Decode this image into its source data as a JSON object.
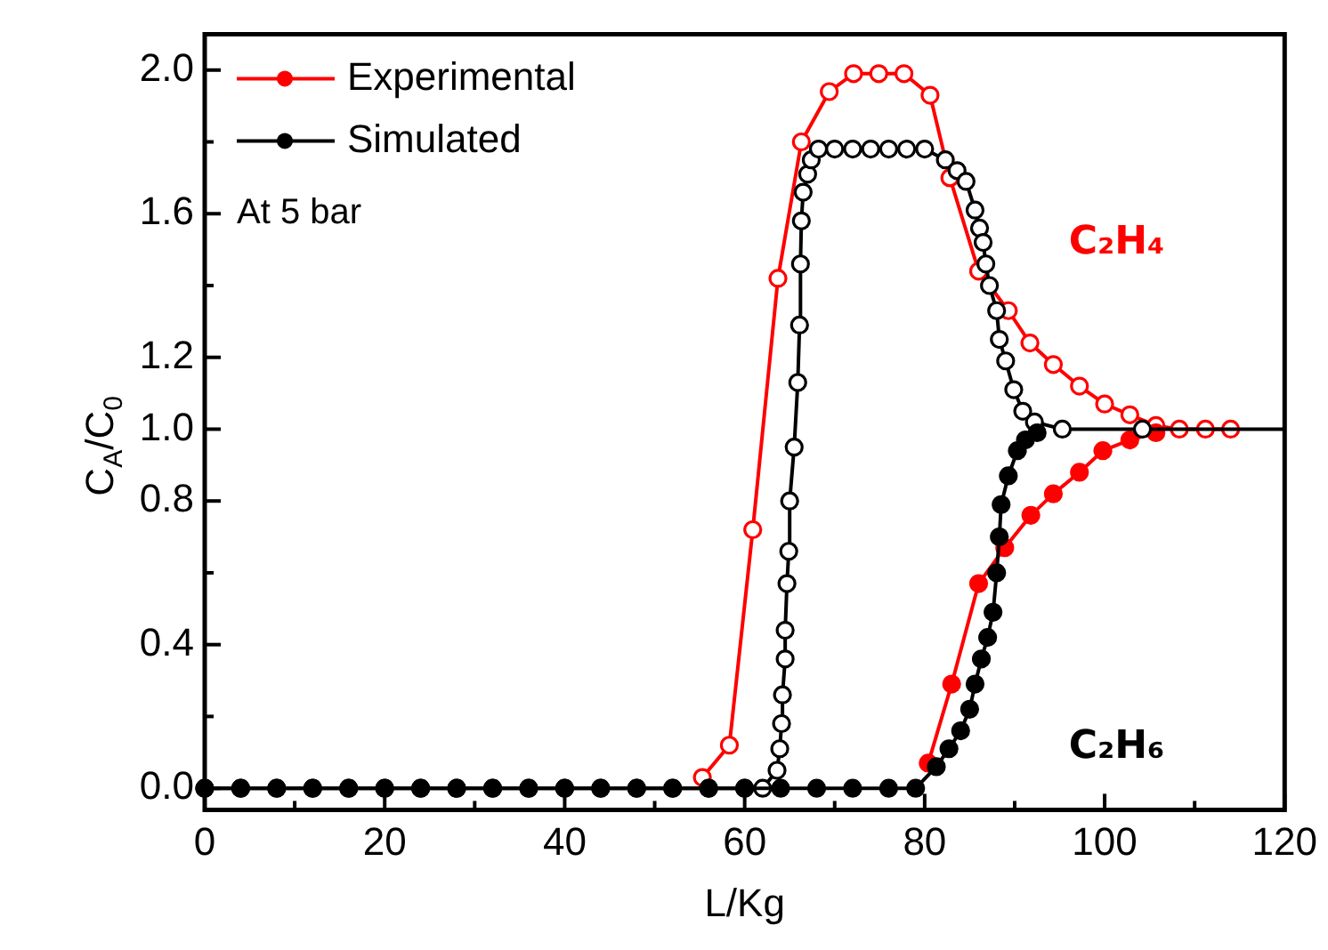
{
  "chart_data": {
    "type": "line",
    "xlabel": "L/Kg",
    "ylabel": "C$_{A}$/C$_{0}$",
    "xlim": [
      0,
      120
    ],
    "ylim": [
      -0.06,
      2.1
    ],
    "xticks": [
      0,
      {
        "value": 10,
        "label": null
      },
      20,
      {
        "value": 30,
        "label": null
      },
      40,
      {
        "value": 50,
        "label": null
      },
      60,
      {
        "value": 70,
        "label": null
      },
      80,
      {
        "value": 90,
        "label": null
      },
      100,
      {
        "value": 110,
        "label": null
      },
      120
    ],
    "yticks": [
      {
        "value": 0,
        "label": "0.0"
      },
      {
        "value": 0.2,
        "label": null
      },
      0.4,
      {
        "value": 0.6,
        "label": null
      },
      0.8,
      {
        "value": 1,
        "label": "1.0"
      },
      1.2,
      {
        "value": 1.4,
        "label": null
      },
      1.6,
      {
        "value": 1.8,
        "label": null
      },
      {
        "value": 2,
        "label": "2.0"
      }
    ],
    "marker": "circle",
    "line_style": "solid",
    "legend": "top left",
    "annotations": [
      "C₂H₄",
      "C₂H₆",
      "At 5 bar"
    ],
    "series": [
      {
        "color": "#ff0000",
        "x": [
          55.3,
          58.3,
          60.9,
          63.7,
          66.3,
          69.4,
          72.1,
          74.9,
          77.7,
          80.6,
          82.8,
          86,
          89.3,
          91.7,
          94.3,
          97.2,
          100,
          102.8,
          105.7,
          108.3,
          111.2,
          114
        ],
        "values": [
          0.03,
          0.12,
          0.72,
          1.42,
          1.8,
          1.94,
          1.99,
          1.99,
          1.99,
          1.93,
          1.7,
          1.44,
          1.33,
          1.24,
          1.18,
          1.12,
          1.07,
          1.04,
          1.01,
          1,
          1,
          1
        ]
      },
      {
        "color": "#000000",
        "x": [
          0,
          4,
          8,
          12,
          16,
          20,
          24,
          28,
          32,
          36,
          40,
          44,
          48,
          52,
          56,
          60,
          62,
          63.6,
          63.9,
          64.1,
          64.2,
          64.5,
          64.5,
          64.7,
          64.9,
          65,
          65.5,
          65.9,
          66.1,
          66.2,
          66.3,
          66.5,
          67,
          67.4,
          68.2,
          70,
          72,
          74,
          76,
          78,
          80,
          82.3,
          83.6,
          84.6,
          85.6,
          86.1,
          86.5,
          86.8,
          87.2,
          88,
          88.3,
          89,
          89.9,
          90.9,
          92.2,
          95.3,
          104.2,
          120
        ],
        "values": [
          0,
          0,
          0,
          0,
          0,
          0,
          0,
          0,
          0,
          0,
          0,
          0,
          0,
          0,
          0,
          0,
          0,
          0.05,
          0.11,
          0.18,
          0.26,
          0.36,
          0.44,
          0.57,
          0.66,
          0.8,
          0.95,
          1.13,
          1.29,
          1.46,
          1.58,
          1.66,
          1.71,
          1.75,
          1.78,
          1.78,
          1.78,
          1.78,
          1.78,
          1.78,
          1.78,
          1.75,
          1.72,
          1.69,
          1.61,
          1.56,
          1.52,
          1.46,
          1.4,
          1.33,
          1.25,
          1.19,
          1.11,
          1.05,
          1.02,
          1,
          1,
          1
        ]
      },
      {
        "name": "Experimental",
        "color": "#ff0000",
        "x": [
          80.4,
          83,
          86,
          88.9,
          91.8,
          94.3,
          97.2,
          99.8,
          102.8,
          105.7
        ],
        "values": [
          0.07,
          0.29,
          0.57,
          0.67,
          0.76,
          0.82,
          0.88,
          0.94,
          0.97,
          0.99
        ]
      },
      {
        "name": "Simulated",
        "color": "#000000",
        "x": [
          0,
          4,
          8,
          12,
          16,
          20,
          24,
          28,
          32,
          36,
          40,
          44,
          48,
          52,
          56,
          60,
          64,
          68,
          72,
          76,
          79,
          81.3,
          82.7,
          84,
          85,
          85.6,
          86.3,
          87,
          87.6,
          88,
          88.3,
          88.5,
          89.3,
          90.3,
          91.2,
          92.5
        ],
        "values": [
          0,
          0,
          0,
          0,
          0,
          0,
          0,
          0,
          0,
          0,
          0,
          0,
          0,
          0,
          0,
          0,
          0,
          0,
          0,
          0,
          0,
          0.06,
          0.11,
          0.16,
          0.22,
          0.29,
          0.36,
          0.42,
          0.49,
          0.6,
          0.7,
          0.79,
          0.87,
          0.94,
          0.97,
          0.99
        ]
      }
    ]
  }
}
